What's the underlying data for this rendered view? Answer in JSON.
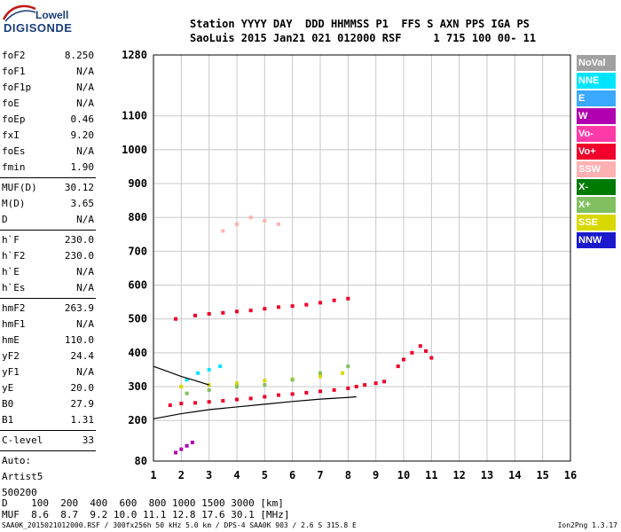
{
  "logo": {
    "brand_top": "Lowell",
    "brand_bottom": "DIGISONDE"
  },
  "header": {
    "line1": "Station YYYY DAY  DDD HHMMSS P1  FFS S AXN PPS IGA PS",
    "line2": "SaoLuis 2015 Jan21 021 012000 RSF     1 715 100 00- 11"
  },
  "params": {
    "group1": [
      {
        "label": "foF2",
        "value": "8.250"
      },
      {
        "label": "foF1",
        "value": "N/A"
      },
      {
        "label": "foF1p",
        "value": "N/A"
      },
      {
        "label": "foE",
        "value": "N/A"
      },
      {
        "label": "foEp",
        "value": "0.46"
      },
      {
        "label": "fxI",
        "value": "9.20"
      },
      {
        "label": "foEs",
        "value": "N/A"
      },
      {
        "label": "fmin",
        "value": "1.90"
      }
    ],
    "group2": [
      {
        "label": "MUF(D)",
        "value": "30.12"
      },
      {
        "label": "M(D)",
        "value": "3.65"
      },
      {
        "label": "D",
        "value": "N/A"
      }
    ],
    "group3": [
      {
        "label": "h`F",
        "value": "230.0"
      },
      {
        "label": "h`F2",
        "value": "230.0"
      },
      {
        "label": "h`E",
        "value": "N/A"
      },
      {
        "label": "h`Es",
        "value": "N/A"
      }
    ],
    "group4": [
      {
        "label": "hmF2",
        "value": "263.9"
      },
      {
        "label": "hmF1",
        "value": "N/A"
      },
      {
        "label": "hmE",
        "value": "110.0"
      },
      {
        "label": "yF2",
        "value": "24.4"
      },
      {
        "label": "yF1",
        "value": "N/A"
      },
      {
        "label": "yE",
        "value": "20.0"
      },
      {
        "label": "B0",
        "value": "27.9"
      },
      {
        "label": "B1",
        "value": "1.31"
      }
    ],
    "group5": [
      {
        "label": "C-level",
        "value": "33"
      }
    ],
    "auto_lines": [
      "Auto:",
      "Artist5",
      "500200"
    ]
  },
  "legend": [
    {
      "label": "NoVal",
      "color": "#a0a0a0"
    },
    {
      "label": "NNE",
      "color": "#00e5ff"
    },
    {
      "label": "E",
      "color": "#3aa8ff"
    },
    {
      "label": "W",
      "color": "#b000b0"
    },
    {
      "label": "Vo-",
      "color": "#ff3aa8"
    },
    {
      "label": "Vo+",
      "color": "#f0002a"
    },
    {
      "label": "SSW",
      "color": "#ffb0b0"
    },
    {
      "label": "X-",
      "color": "#007a00"
    },
    {
      "label": "X+",
      "color": "#80c060"
    },
    {
      "label": "SSE",
      "color": "#d8d800"
    },
    {
      "label": "NNW",
      "color": "#1a1acc"
    }
  ],
  "muf_table": {
    "line1": "D    100  200  400  600  800 1000 1500 3000 [km]",
    "line2": "MUF  8.6  8.7  9.2 10.0 11.1 12.8 17.6 30.1 [MHz]"
  },
  "footer": {
    "file": "SAA0K_2015021012000.RSF / 300fx256h 50 kHz 5.0 km / DPS-4 SAA0K 903 / 2.6 S 315.8 E",
    "version": "Ion2Png 1.3.17"
  },
  "chart_data": {
    "type": "scatter",
    "xlabel": "",
    "ylabel": "",
    "x_ticks": [
      1,
      2,
      3,
      4,
      5,
      6,
      7,
      8,
      9,
      10,
      11,
      12,
      13,
      14,
      15,
      16
    ],
    "y_ticks": [
      80,
      200,
      300,
      400,
      500,
      600,
      700,
      800,
      900,
      1000,
      1100,
      1280
    ],
    "xlim": [
      1,
      16
    ],
    "ylim": [
      80,
      1280
    ],
    "grid": true,
    "traces": [
      {
        "name": "Vo+",
        "color": "#f0002a",
        "x": [
          1.6,
          2.0,
          2.5,
          3.0,
          3.5,
          4.0,
          4.5,
          5.0,
          5.5,
          6.0,
          6.5,
          7.0,
          7.5,
          8.0,
          8.3,
          8.6,
          9.0,
          9.3
        ],
        "y": [
          245,
          250,
          252,
          255,
          258,
          262,
          265,
          270,
          275,
          278,
          282,
          286,
          290,
          295,
          300,
          305,
          310,
          315
        ]
      },
      {
        "name": "Vo+",
        "color": "#f0002a",
        "x": [
          1.8,
          2.5,
          3.0,
          3.5,
          4.0,
          4.5,
          5.0,
          5.5,
          6.0,
          6.5,
          7.0,
          7.5,
          8.0
        ],
        "y": [
          500,
          510,
          515,
          518,
          522,
          525,
          530,
          535,
          538,
          542,
          548,
          555,
          560
        ]
      },
      {
        "name": "Vo+",
        "color": "#f0002a",
        "x": [
          9.8,
          10.0,
          10.3,
          10.6,
          10.8,
          11.0
        ],
        "y": [
          360,
          380,
          400,
          420,
          405,
          385
        ]
      },
      {
        "name": "SSE",
        "color": "#d8d800",
        "x": [
          2.0,
          3.0,
          4.0,
          5.0,
          6.0,
          7.0,
          7.8
        ],
        "y": [
          300,
          305,
          310,
          318,
          322,
          330,
          340
        ]
      },
      {
        "name": "W",
        "color": "#b000b0",
        "x": [
          1.8,
          2.0,
          2.2,
          2.4
        ],
        "y": [
          105,
          115,
          125,
          135
        ]
      },
      {
        "name": "X+",
        "color": "#80c060",
        "x": [
          2.2,
          3.0,
          4.0,
          5.0,
          6.0,
          7.0,
          8.0
        ],
        "y": [
          280,
          290,
          300,
          305,
          320,
          340,
          360
        ]
      },
      {
        "name": "SSW",
        "color": "#ffb0b0",
        "x": [
          3.5,
          4.0,
          4.5,
          5.0,
          5.5
        ],
        "y": [
          760,
          780,
          800,
          790,
          780
        ]
      },
      {
        "name": "NNE",
        "color": "#00e5ff",
        "x": [
          2.2,
          2.6,
          3.0,
          3.4
        ],
        "y": [
          320,
          340,
          350,
          360
        ]
      }
    ],
    "profile_lines": [
      {
        "name": "black",
        "x": [
          1.0,
          2.0,
          3.0,
          4.0,
          5.0,
          6.0,
          7.0,
          8.0,
          8.3
        ],
        "y": [
          205,
          220,
          232,
          240,
          248,
          256,
          263,
          268,
          270
        ]
      },
      {
        "name": "black",
        "x": [
          1.0,
          1.5,
          2.0,
          2.5,
          3.0
        ],
        "y": [
          360,
          345,
          330,
          318,
          305
        ]
      }
    ]
  }
}
